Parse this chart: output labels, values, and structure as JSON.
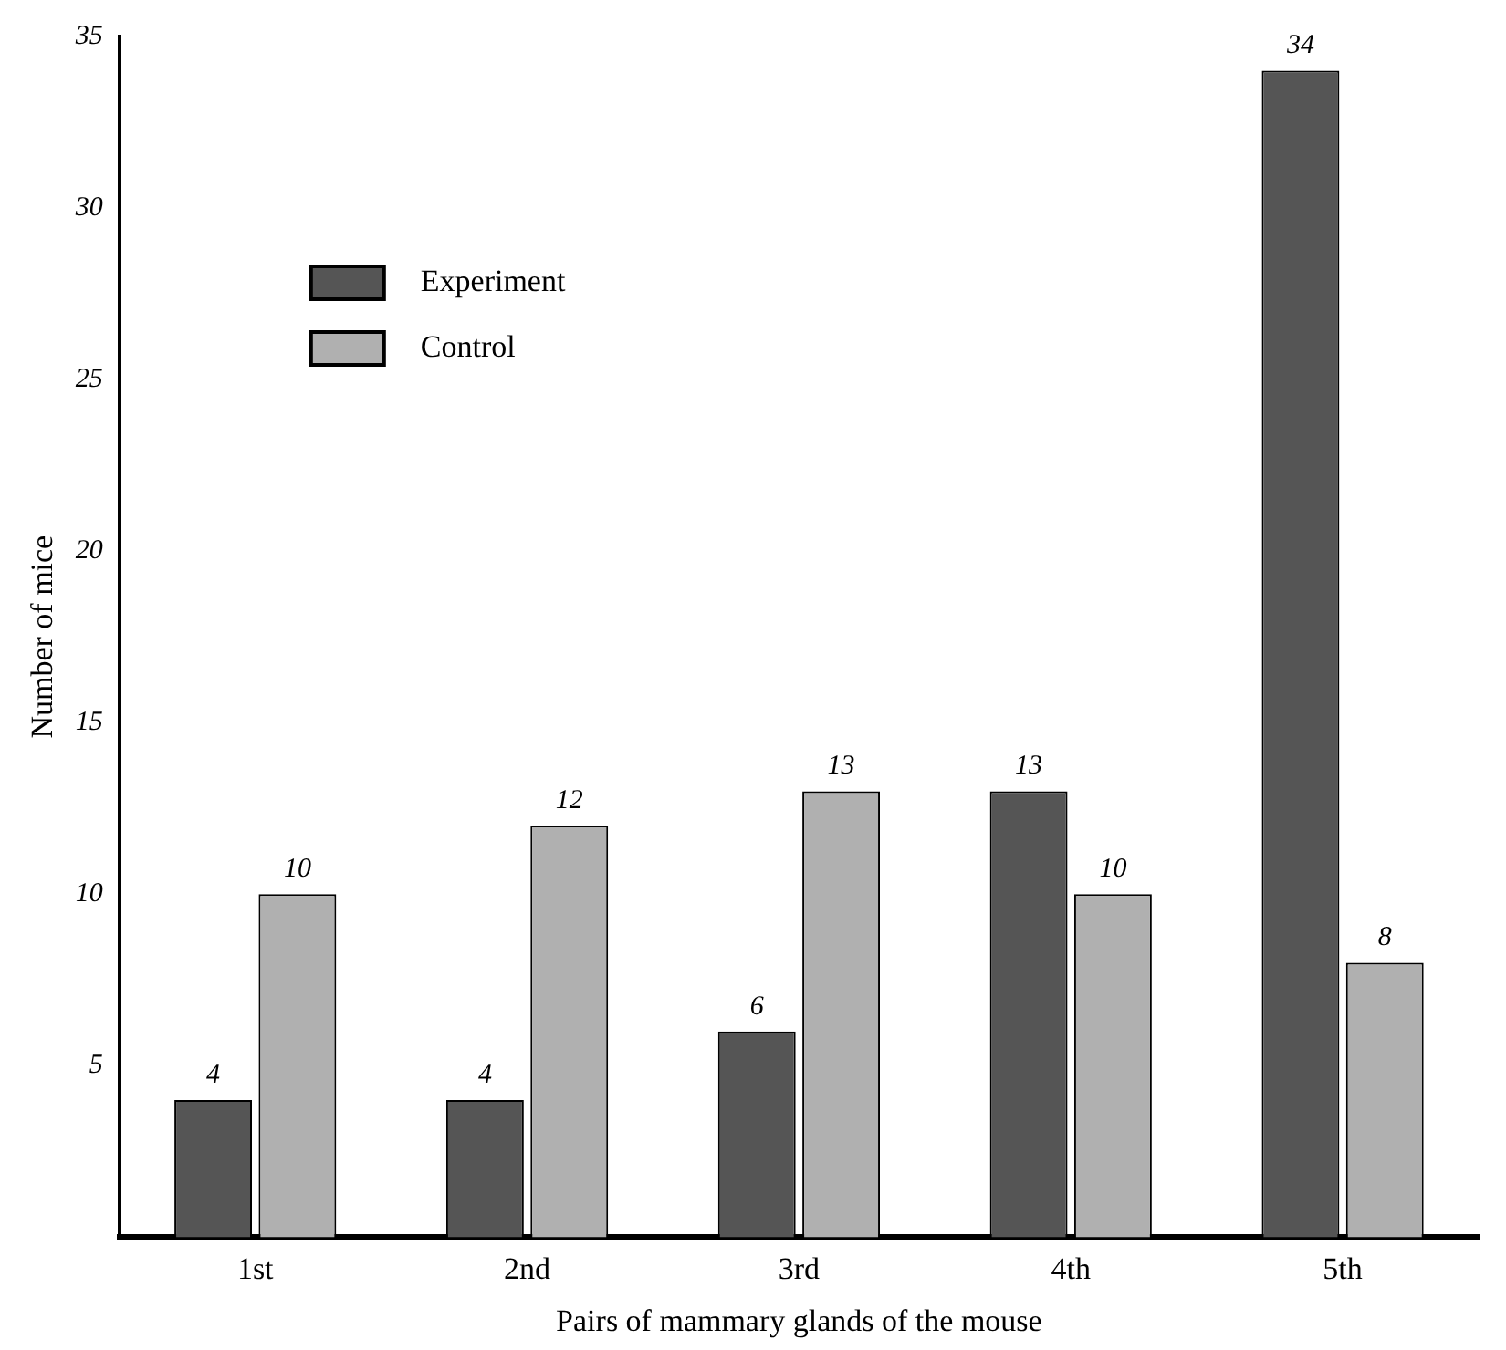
{
  "chart_data": {
    "type": "bar",
    "xlabel": "Pairs of mammary glands of the mouse",
    "ylabel": "Number of mice",
    "categories": [
      "1st",
      "2nd",
      "3rd",
      "4th",
      "5th"
    ],
    "series": [
      {
        "name": "Experiment",
        "color": "#555555",
        "values": [
          4,
          4,
          6,
          13,
          34
        ]
      },
      {
        "name": "Control",
        "color": "#b0b0b0",
        "values": [
          10,
          12,
          13,
          10,
          8
        ]
      }
    ],
    "ylim": [
      0,
      35
    ],
    "yticks": [
      5,
      10,
      15,
      20,
      25,
      30,
      35
    ],
    "grid": false,
    "legend": "top left",
    "data_labels": true
  }
}
